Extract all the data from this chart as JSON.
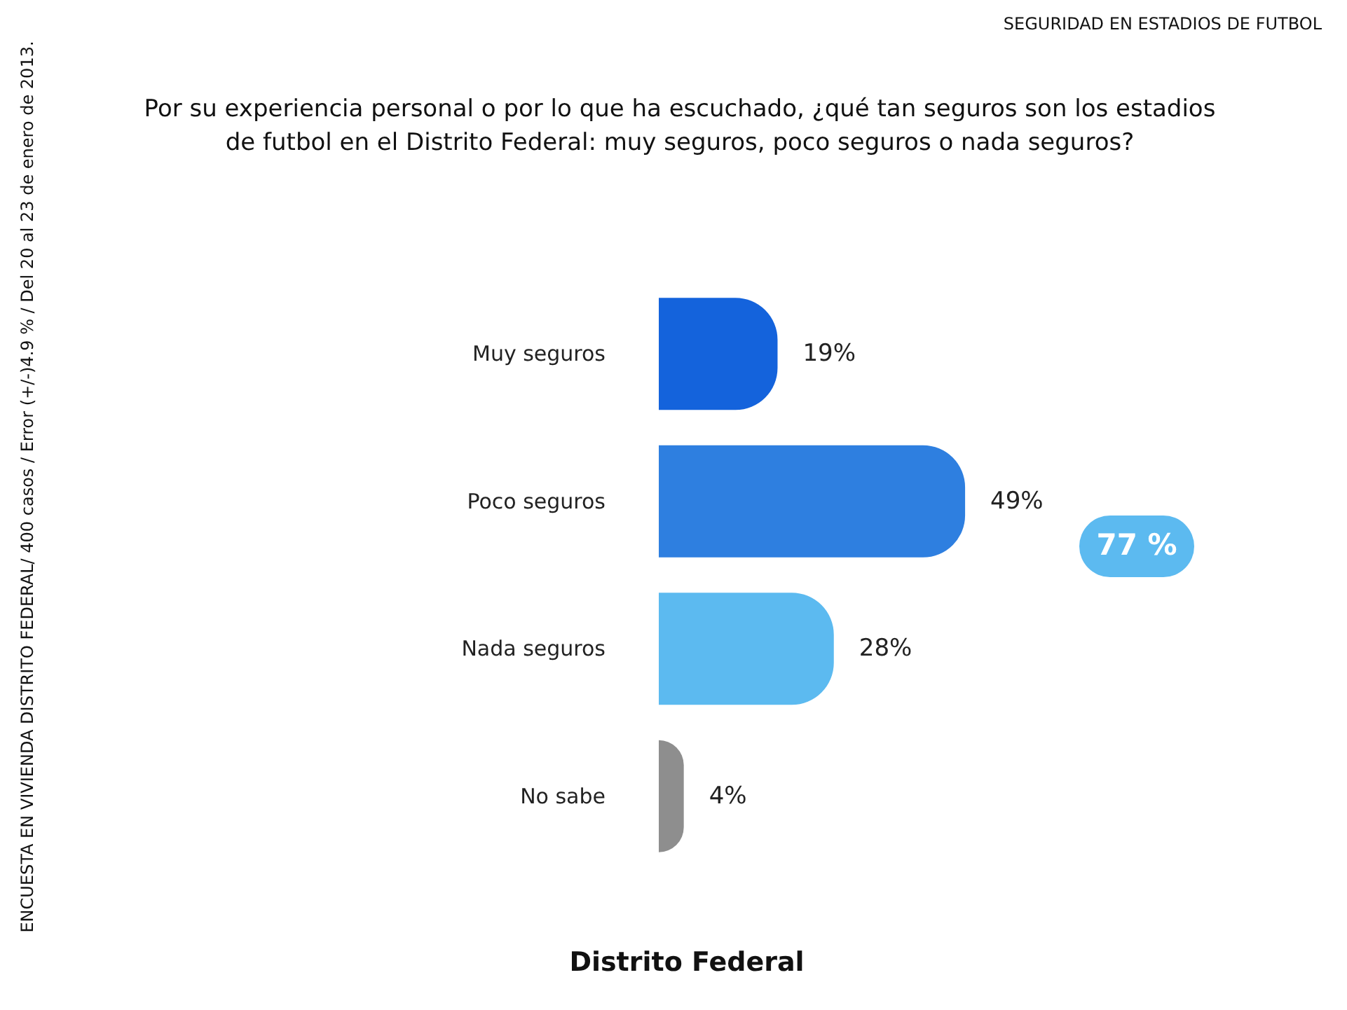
{
  "chart_data": {
    "type": "bar",
    "orientation": "horizontal",
    "title": "Por su experiencia personal o por lo que ha escuchado, ¿qué tan seguros son los estadios de futbol en el Distrito Federal: muy seguros, poco seguros o nada seguros?",
    "xlabel": "Distrito Federal",
    "categories": [
      "Muy seguros",
      "Poco seguros",
      "Nada seguros",
      "No sabe"
    ],
    "values": [
      19,
      49,
      28,
      4
    ],
    "colors": [
      "#1463dc",
      "#2e7fe0",
      "#5cbaf0",
      "#8e8e8e"
    ],
    "value_labels": [
      "19%",
      "49%",
      "28%",
      "4%"
    ],
    "annotations": [
      "SEGURIDAD EN ESTADIOS DE FUTBOL",
      "ENCUESTA EN VIVIENDA DISTRITO FEDERAL/ 400 casos / Error (+/-)4.9 % / Del 20 al 23 de enero de 2013.",
      "77 %"
    ]
  }
}
